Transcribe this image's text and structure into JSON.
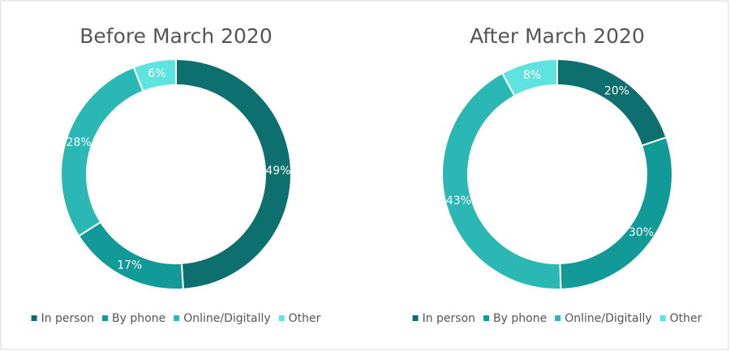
{
  "chart_data": [
    {
      "type": "pie",
      "title": "Before March 2020",
      "categories": [
        "In person",
        "By phone",
        "Online/Digitally",
        "Other"
      ],
      "values": [
        49,
        17,
        28,
        6
      ],
      "value_labels": [
        "49%",
        "17%",
        "28%",
        "6%"
      ],
      "colors": [
        "#0e6f6f",
        "#129a99",
        "#2bb7b3",
        "#5fe3de"
      ],
      "donut": true,
      "legend": "bottom"
    },
    {
      "type": "pie",
      "title": "After March 2020",
      "categories": [
        "In person",
        "By phone",
        "Online/Digitally",
        "Other"
      ],
      "values": [
        20,
        30,
        43,
        8
      ],
      "value_labels": [
        "20%",
        "30%",
        "43%",
        "8%"
      ],
      "colors": [
        "#0e6f6f",
        "#129a99",
        "#2bb7b3",
        "#5fe3de"
      ],
      "donut": true,
      "legend": "bottom"
    }
  ]
}
